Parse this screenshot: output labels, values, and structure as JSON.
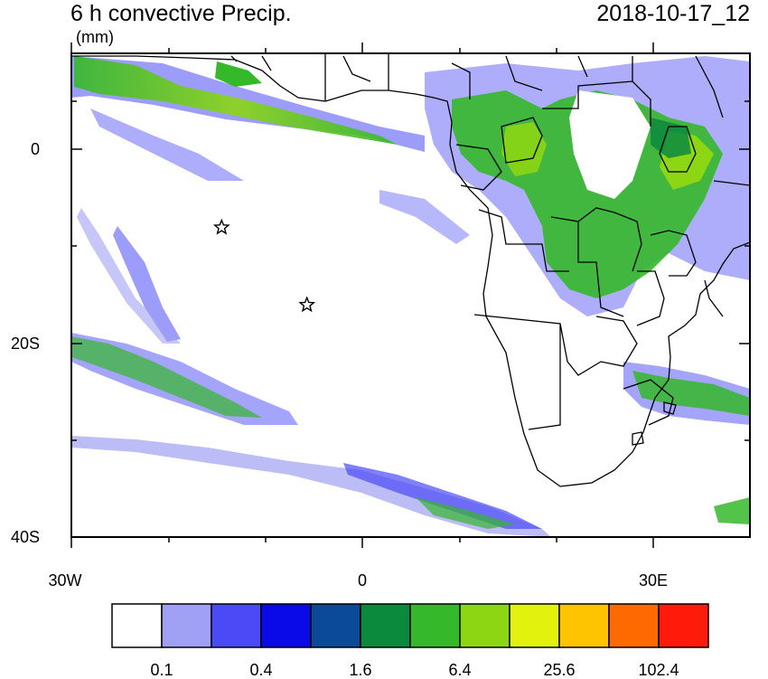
{
  "header": {
    "title": "6 h convective Precip.",
    "datetime": "2018-10-17_12",
    "units": "(mm)"
  },
  "map": {
    "region": "South Atlantic / southern Africa",
    "lon_range": [
      -30,
      40
    ],
    "lat_range": [
      -40,
      10
    ],
    "y_tick_labels": [
      "0",
      "20S",
      "40S"
    ],
    "x_tick_labels": [
      "30W",
      "0",
      "30E"
    ],
    "markers": [
      {
        "type": "star",
        "lon": -14.5,
        "lat": -8.0
      },
      {
        "type": "star",
        "lon": -5.7,
        "lat": -16.0
      }
    ]
  },
  "colorbar": {
    "colors": [
      "#ffffff",
      "#a0a0f4",
      "#4a4af6",
      "#0a0ae8",
      "#0a4a96",
      "#0b8a3e",
      "#35b82a",
      "#8dd614",
      "#e2f20c",
      "#ffc400",
      "#ff6a00",
      "#ff1a0a"
    ],
    "labels": [
      "0.1",
      "0.4",
      "1.6",
      "6.4",
      "25.6",
      "102.4"
    ]
  }
}
